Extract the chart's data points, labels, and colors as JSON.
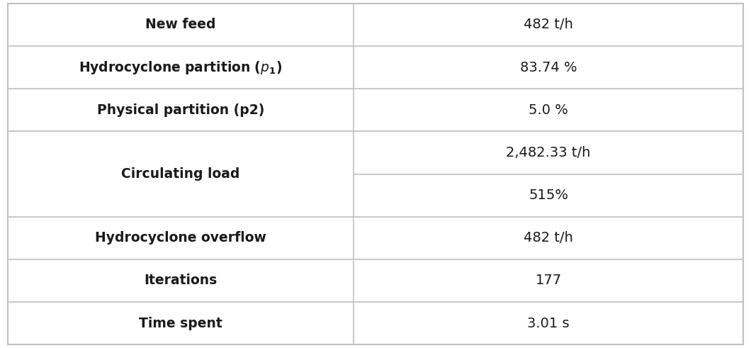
{
  "bg_color": "#ffffff",
  "table_bg": "#ffffff",
  "border_color": "#c0c0c0",
  "text_color": "#1a1a1a",
  "col_split": 0.47,
  "rows": [
    {
      "label": "New feed",
      "value": "482 t/h",
      "split": false,
      "label_bold": true
    },
    {
      "label": "Hydrocyclone partition (",
      "label_italic_part": "p",
      "label_subscript": "1",
      "label_suffix": ")",
      "value": "83.74 %",
      "split": false,
      "label_bold": true,
      "has_italic": true
    },
    {
      "label": "Physical partition (p2)",
      "value": "5.0 %",
      "split": false,
      "label_bold": true
    },
    {
      "label": "Circulating load",
      "value": "2,482.33 t/h",
      "value2": "515%",
      "split": true,
      "label_bold": true
    },
    {
      "label": "Hydrocyclone overflow",
      "value": "482 t/h",
      "split": false,
      "label_bold": true
    },
    {
      "label": "Iterations",
      "value": "177",
      "split": false,
      "label_bold": true
    },
    {
      "label": "Time spent",
      "value": "3.01 s",
      "split": false,
      "label_bold": true
    }
  ]
}
